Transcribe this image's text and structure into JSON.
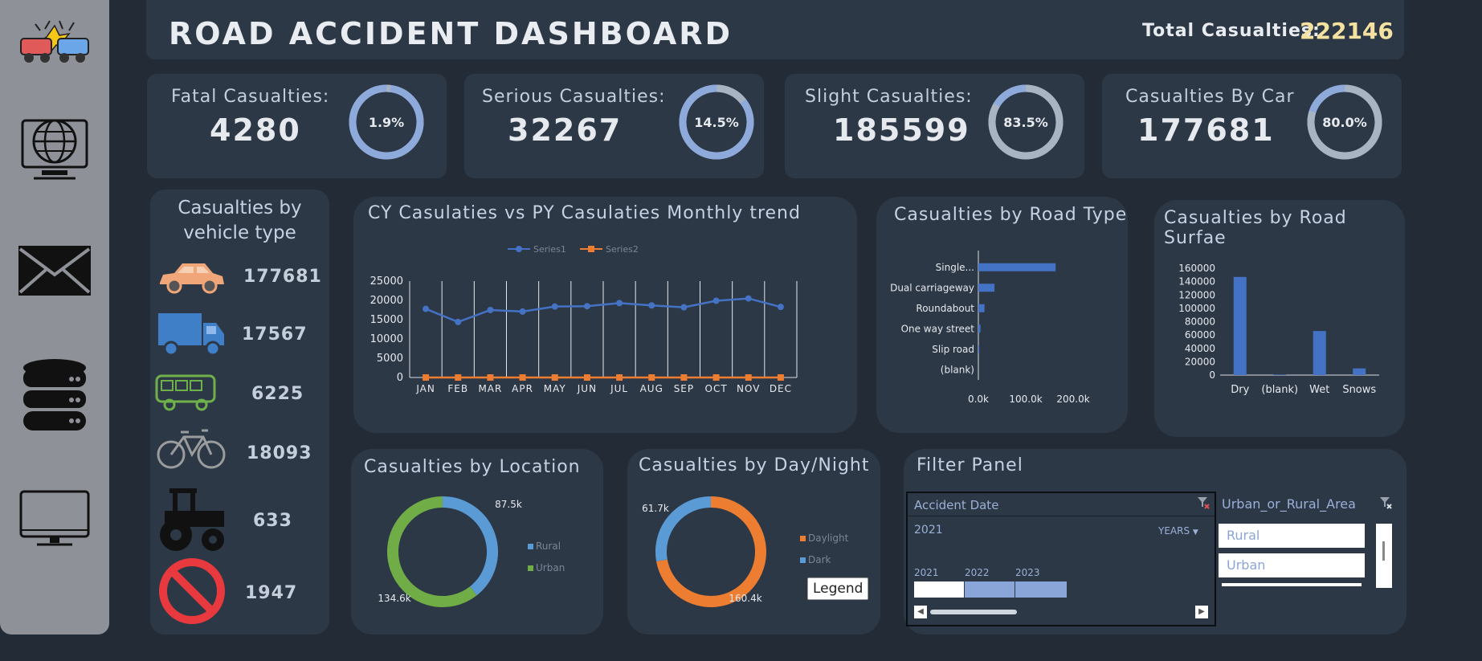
{
  "header": {
    "title": "ROAD ACCIDENT DASHBOARD",
    "total_label": "Total Casualties:",
    "total_value": "222146"
  },
  "kpis": [
    {
      "label": "Fatal Casualties:",
      "value": "4280",
      "pct_label": "1.9%",
      "pct": 1.9
    },
    {
      "label": "Serious Casualties:",
      "value": "32267",
      "pct_label": "14.5%",
      "pct": 14.5
    },
    {
      "label": "Slight Casualties:",
      "value": "185599",
      "pct_label": "83.5%",
      "pct": 83.5
    },
    {
      "label": "Casualties By Car",
      "value": "177681",
      "pct_label": "80.0%",
      "pct": 80.0
    }
  ],
  "vehicles": {
    "title_line1": "Casualties by",
    "title_line2": "vehicle type",
    "items": [
      {
        "icon": "car-icon",
        "value": "177681",
        "color": "#f0a678"
      },
      {
        "icon": "truck-icon",
        "value": "17567",
        "color": "#6f9fd6"
      },
      {
        "icon": "bus-icon",
        "value": "6225",
        "color": "#6fb04a"
      },
      {
        "icon": "bicycle-icon",
        "value": "18093",
        "color": "#a7a9ab"
      },
      {
        "icon": "tractor-icon",
        "value": "633",
        "color": "#111111"
      },
      {
        "icon": "no-entry-icon",
        "value": "1947",
        "color": "#ff2a6d"
      }
    ]
  },
  "sidebar": {
    "icons": [
      "crash-icon",
      "globe-monitor-icon",
      "mail-icon",
      "database-icon",
      "monitor-icon"
    ]
  },
  "filter": {
    "title": "Filter Panel",
    "date_slicer": {
      "title": "Accident Date",
      "selected": "2021",
      "level": "YEARS",
      "years": [
        "2021",
        "2022",
        "2023"
      ]
    },
    "area_slicer": {
      "title": "Urban_or_Rural_Area",
      "items": [
        "Rural",
        "Urban"
      ]
    }
  },
  "chart_data": [
    {
      "type": "line",
      "title": "CY Casulaties vs PY Casulaties Monthly trend",
      "categories": [
        "JAN",
        "FEB",
        "MAR",
        "APR",
        "MAY",
        "JUN",
        "JUL",
        "AUG",
        "SEP",
        "OCT",
        "NOV",
        "DEC"
      ],
      "series": [
        {
          "name": "Series1",
          "values": [
            17800,
            14400,
            17500,
            17100,
            18400,
            18500,
            19300,
            18700,
            18200,
            19900,
            20500,
            18300
          ],
          "color": "#4472c4"
        },
        {
          "name": "Series2",
          "values": [
            0,
            0,
            0,
            0,
            0,
            0,
            0,
            0,
            0,
            0,
            0,
            0
          ],
          "color": "#ed7d31"
        }
      ],
      "yticks": [
        "25000",
        "20000",
        "15000",
        "10000",
        "5000",
        "0"
      ],
      "ylim": [
        0,
        25000
      ]
    },
    {
      "type": "bar",
      "orientation": "horizontal",
      "title": "Casualties by Road Type",
      "categories": [
        "Single...",
        "Dual carriageway",
        "Roundabout",
        "One way street",
        "Slip road",
        "(blank)"
      ],
      "values": [
        163000,
        34000,
        13000,
        4500,
        2000,
        0
      ],
      "xticks": [
        "0.0k",
        "100.0k",
        "200.0k"
      ],
      "xlim": [
        0,
        200000
      ],
      "color": "#4472c4"
    },
    {
      "type": "bar",
      "title": "Casualties by Road Surfae",
      "categories": [
        "Dry",
        "(blank)",
        "Wet",
        "Snows"
      ],
      "values": [
        147000,
        800,
        66000,
        10000
      ],
      "yticks": [
        "160000",
        "140000",
        "120000",
        "100000",
        "80000",
        "60000",
        "40000",
        "20000",
        "0"
      ],
      "ylim": [
        0,
        160000
      ],
      "color": "#4472c4"
    },
    {
      "type": "pie",
      "title": "Casualties by Location",
      "slices": [
        {
          "label": "Rural",
          "value": 87.5,
          "data_label": "87.5k",
          "color": "#5b9bd5"
        },
        {
          "label": "Urban",
          "value": 134.6,
          "data_label": "134.6k",
          "color": "#70ad47"
        }
      ]
    },
    {
      "type": "pie",
      "title": "Casualties by Day/Night",
      "slices": [
        {
          "label": "Daylight",
          "value": 160.4,
          "data_label": "160.4k",
          "color": "#ed7d31"
        },
        {
          "label": "Dark",
          "value": 61.7,
          "data_label": "61.7k",
          "color": "#5b9bd5"
        }
      ],
      "legend_button": "Legend"
    }
  ]
}
